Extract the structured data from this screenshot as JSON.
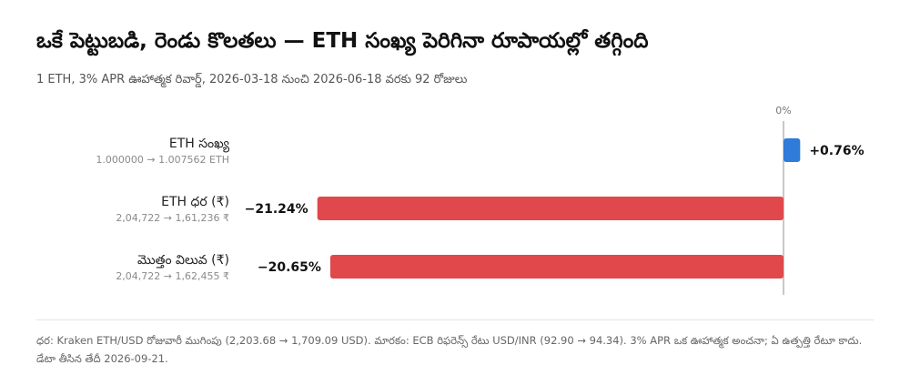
{
  "header": {
    "title": "ఒకే పెట్టుబడి, రెండు కొలతలు — ETH సంఖ్య పెరిగినా రూపాయల్లో తగ్గింది",
    "subtitle": "1 ETH, 3% APR ఊహాత్మక రివార్డ్, 2026-03-18 నుంచి 2026-06-18 వరకు 92 రోజులు"
  },
  "footer": {
    "note": "ధర: Kraken ETH/USD రోజువారీ ముగింపు (2,203.68 → 1,709.09 USD). మారకం: ECB రిఫరెన్స్ రేటు USD/INR (92.90 → 94.34). 3% APR ఒక ఊహాత్మక అంచనా; ఏ ఉత్పత్తి రేటూ కాదు. డేటా తీసిన తేదీ 2026-09-21."
  },
  "colors": {
    "positive": "#2f7bd9",
    "negative": "#e0484c",
    "axis": "#b5b5b5"
  },
  "chart_data": {
    "type": "bar",
    "orientation": "horizontal",
    "zero_label": "0%",
    "xlim": [
      -22.5,
      0.9
    ],
    "categories": [
      {
        "label": "ETH సంఖ్య",
        "detail": "1.000000 → 1.007562 ETH",
        "value": 0.76,
        "value_label": "+0.76%"
      },
      {
        "label": "ETH ధర (₹)",
        "detail": "2,04,722 → 1,61,236 ₹",
        "value": -21.24,
        "value_label": "−21.24%"
      },
      {
        "label": "మొత్తం విలువ (₹)",
        "detail": "2,04,722 → 1,62,455 ₹",
        "value": -20.65,
        "value_label": "−20.65%"
      }
    ]
  }
}
